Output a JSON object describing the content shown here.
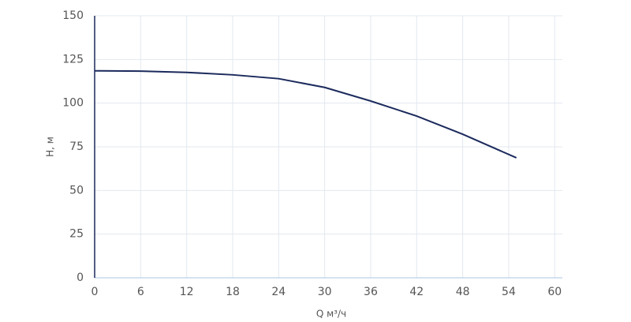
{
  "chart_data": {
    "type": "line",
    "x_label": "Q м³/ч",
    "y_label": "H, м",
    "x": [
      0,
      6,
      12,
      18,
      24,
      30,
      36,
      42,
      48,
      55
    ],
    "series": [
      {
        "color": "#1b2a5c",
        "values": [
          118.5,
          118.3,
          117.6,
          116.2,
          114,
          109,
          101.2,
          92.6,
          82.2,
          68.7
        ]
      }
    ],
    "xlim": [
      0,
      61
    ],
    "xticks": [
      0,
      6,
      12,
      18,
      24,
      30,
      36,
      42,
      48,
      54,
      60
    ],
    "ylim": [
      0,
      150
    ],
    "yticks": [
      0,
      25,
      50,
      75,
      100,
      125,
      150
    ],
    "grid": true
  }
}
